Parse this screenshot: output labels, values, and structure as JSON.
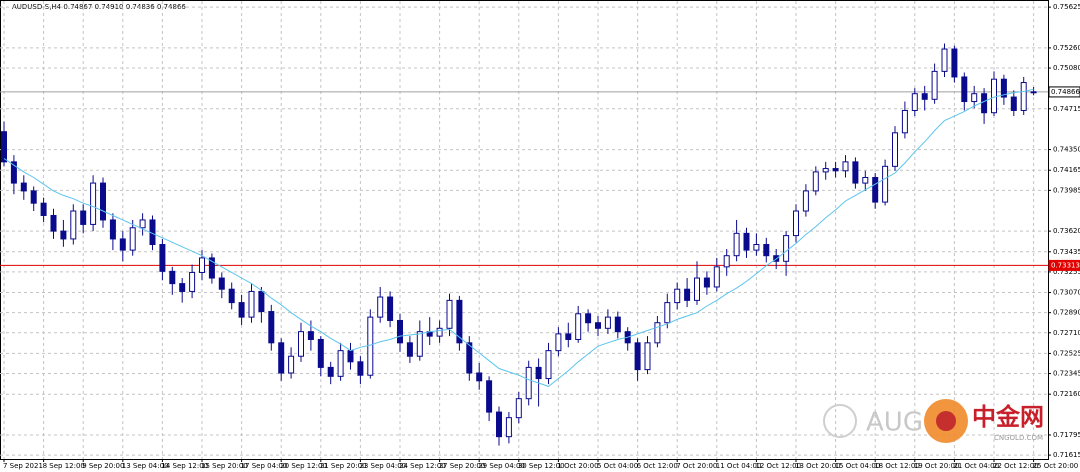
{
  "chart_data": {
    "type": "candlestick",
    "title": "AUDUSD-S,H4  0.74867 0.74910 0.74836 0.74866",
    "categories": [
      "7 Sep 2021",
      null,
      null,
      null,
      "8 Sep 12:00",
      null,
      null,
      null,
      "9 Sep 20:00",
      null,
      null,
      null,
      "13 Sep 04:00",
      null,
      null,
      null,
      "14 Sep 12:00",
      null,
      null,
      null,
      "15 Sep 20:00",
      null,
      null,
      null,
      "17 Sep 04:00",
      null,
      null,
      null,
      "20 Sep 12:00",
      null,
      null,
      null,
      "21 Sep 20:00",
      null,
      null,
      null,
      "23 Sep 04:00",
      null,
      null,
      null,
      "24 Sep 12:00",
      null,
      null,
      null,
      "27 Sep 20:00",
      null,
      null,
      null,
      "29 Sep 04:00",
      null,
      null,
      null,
      "30 Sep 12:00",
      null,
      null,
      null,
      "1 Oct 20:00",
      null,
      null,
      null,
      "5 Oct 04:00",
      null,
      null,
      null,
      "6 Oct 12:00",
      null,
      null,
      null,
      "7 Oct 20:00",
      null,
      null,
      null,
      "11 Oct 04:00",
      null,
      null,
      null,
      "12 Oct 12:00",
      null,
      null,
      null,
      "13 Oct 20:00",
      null,
      null,
      null,
      "15 Oct 04:00",
      null,
      null,
      null,
      "18 Oct 12:00",
      null,
      null,
      null,
      "19 Oct 20:00",
      null,
      null,
      null,
      "21 Oct 04:00",
      null,
      null,
      null,
      "22 Oct 12:00",
      null,
      null,
      null,
      "25 Oct 20:00"
    ],
    "open": [
      0.7451,
      0.7424,
      0.7405,
      0.7398,
      0.7387,
      0.7376,
      0.7362,
      0.7355,
      0.738,
      0.7368,
      0.7405,
      0.7372,
      0.7355,
      0.7345,
      0.7365,
      0.7372,
      0.735,
      0.7326,
      0.7315,
      0.7308,
      0.7325,
      0.7338,
      0.732,
      0.731,
      0.7298,
      0.7285,
      0.7308,
      0.729,
      0.7262,
      0.7235,
      0.725,
      0.7272,
      0.7265,
      0.724,
      0.7232,
      0.7255,
      0.7245,
      0.7233,
      0.7285,
      0.7303,
      0.7282,
      0.7262,
      0.725,
      0.7272,
      0.7268,
      0.7275,
      0.73,
      0.7262,
      0.7235,
      0.7228,
      0.72,
      0.7178,
      0.7195,
      0.7212,
      0.724,
      0.723,
      0.7255,
      0.727,
      0.7265,
      0.7288,
      0.728,
      0.7275,
      0.7285,
      0.7272,
      0.7262,
      0.7238,
      0.7262,
      0.728,
      0.7298,
      0.731,
      0.73,
      0.732,
      0.7312,
      0.733,
      0.734,
      0.736,
      0.7345,
      0.735,
      0.734,
      0.7335,
      0.7358,
      0.738,
      0.7398,
      0.7415,
      0.7418,
      0.7416,
      0.7424,
      0.7405,
      0.741,
      0.7388,
      0.742,
      0.745,
      0.747,
      0.7485,
      0.748,
      0.7505,
      0.7525,
      0.75,
      0.7478,
      0.7485,
      0.7468,
      0.7498,
      0.7482,
      0.747,
      0.74867
    ],
    "high": [
      0.746,
      0.743,
      0.7412,
      0.7402,
      0.7392,
      0.7382,
      0.7372,
      0.7386,
      0.7386,
      0.7412,
      0.741,
      0.7378,
      0.7362,
      0.7372,
      0.7378,
      0.7376,
      0.7355,
      0.733,
      0.732,
      0.7332,
      0.7345,
      0.7342,
      0.7325,
      0.7316,
      0.7305,
      0.7315,
      0.7312,
      0.7296,
      0.7266,
      0.7258,
      0.728,
      0.7282,
      0.7268,
      0.7245,
      0.7262,
      0.7262,
      0.725,
      0.7292,
      0.7312,
      0.7308,
      0.7288,
      0.7268,
      0.7282,
      0.7285,
      0.7282,
      0.7306,
      0.7304,
      0.7268,
      0.7244,
      0.7232,
      0.7205,
      0.72,
      0.7218,
      0.7246,
      0.7248,
      0.7262,
      0.7276,
      0.728,
      0.7295,
      0.7292,
      0.7286,
      0.7292,
      0.729,
      0.7276,
      0.7266,
      0.7268,
      0.7286,
      0.7306,
      0.7316,
      0.732,
      0.7335,
      0.7326,
      0.7338,
      0.7346,
      0.7372,
      0.7365,
      0.736,
      0.7356,
      0.7346,
      0.7362,
      0.7386,
      0.7404,
      0.742,
      0.7424,
      0.7424,
      0.743,
      0.7428,
      0.7416,
      0.7414,
      0.7426,
      0.7456,
      0.7478,
      0.749,
      0.7492,
      0.7512,
      0.753,
      0.7528,
      0.7504,
      0.7492,
      0.749,
      0.7505,
      0.7502,
      0.7488,
      0.75,
      0.7491
    ],
    "low": [
      0.742,
      0.7395,
      0.739,
      0.738,
      0.737,
      0.7355,
      0.7348,
      0.735,
      0.736,
      0.7362,
      0.7365,
      0.7345,
      0.7335,
      0.734,
      0.7358,
      0.7345,
      0.7318,
      0.7305,
      0.7298,
      0.7302,
      0.7318,
      0.7315,
      0.7302,
      0.7292,
      0.7278,
      0.728,
      0.728,
      0.7255,
      0.7228,
      0.723,
      0.7245,
      0.7255,
      0.7232,
      0.7225,
      0.7228,
      0.7238,
      0.7225,
      0.723,
      0.728,
      0.7276,
      0.7254,
      0.7244,
      0.7246,
      0.726,
      0.7262,
      0.7268,
      0.7255,
      0.7228,
      0.722,
      0.7192,
      0.717,
      0.7172,
      0.719,
      0.7206,
      0.7205,
      0.7225,
      0.725,
      0.7258,
      0.7262,
      0.7272,
      0.7268,
      0.727,
      0.7266,
      0.7255,
      0.7228,
      0.7234,
      0.7258,
      0.7275,
      0.7292,
      0.7294,
      0.7296,
      0.7305,
      0.7308,
      0.7322,
      0.7335,
      0.7338,
      0.734,
      0.7334,
      0.7328,
      0.7322,
      0.7352,
      0.7375,
      0.7394,
      0.7408,
      0.741,
      0.741,
      0.74,
      0.7398,
      0.7382,
      0.7385,
      0.7416,
      0.7445,
      0.7465,
      0.747,
      0.7476,
      0.75,
      0.7495,
      0.747,
      0.7472,
      0.7458,
      0.7465,
      0.7475,
      0.7465,
      0.7466,
      0.74836
    ],
    "close": [
      0.7424,
      0.7405,
      0.7398,
      0.7387,
      0.7376,
      0.7362,
      0.7355,
      0.738,
      0.7368,
      0.7405,
      0.7372,
      0.7355,
      0.7345,
      0.7365,
      0.7372,
      0.735,
      0.7326,
      0.7315,
      0.7308,
      0.7325,
      0.7338,
      0.732,
      0.731,
      0.7298,
      0.7285,
      0.7308,
      0.729,
      0.7262,
      0.7235,
      0.725,
      0.7272,
      0.7265,
      0.724,
      0.7232,
      0.7255,
      0.7245,
      0.7233,
      0.7285,
      0.7303,
      0.7282,
      0.7262,
      0.725,
      0.7272,
      0.7268,
      0.7275,
      0.73,
      0.7262,
      0.7235,
      0.7228,
      0.72,
      0.7178,
      0.7195,
      0.7212,
      0.724,
      0.723,
      0.7255,
      0.727,
      0.7265,
      0.7288,
      0.728,
      0.7275,
      0.7285,
      0.7272,
      0.7262,
      0.7238,
      0.7262,
      0.728,
      0.7298,
      0.731,
      0.73,
      0.732,
      0.7312,
      0.733,
      0.734,
      0.736,
      0.7345,
      0.735,
      0.734,
      0.7335,
      0.7358,
      0.738,
      0.7398,
      0.7415,
      0.7418,
      0.7416,
      0.7424,
      0.7405,
      0.741,
      0.7388,
      0.742,
      0.745,
      0.747,
      0.7485,
      0.748,
      0.7505,
      0.7525,
      0.75,
      0.7478,
      0.7485,
      0.7468,
      0.7498,
      0.7482,
      0.747,
      0.7495,
      0.74866
    ],
    "candle_color": "#0a0a8c",
    "ma": {
      "color": "#5bc4ef",
      "values": [
        0.7427,
        0.7421,
        0.7415,
        0.741,
        0.7404,
        0.7398,
        0.7394,
        0.7391,
        0.7387,
        0.7384,
        0.738,
        0.7376,
        0.7372,
        0.7368,
        0.7364,
        0.736,
        0.7356,
        0.7352,
        0.7348,
        0.7344,
        0.734,
        0.7335,
        0.733,
        0.7325,
        0.732,
        0.7315,
        0.7309,
        0.7302,
        0.7296,
        0.7289,
        0.7283,
        0.7277,
        0.7272,
        0.7266,
        0.7261,
        0.7255,
        0.7258,
        0.726,
        0.7263,
        0.7265,
        0.7268,
        0.7269,
        0.727,
        0.7272,
        0.7273,
        0.7274,
        0.7267,
        0.726,
        0.7253,
        0.7246,
        0.7239,
        0.7236,
        0.7233,
        0.7229,
        0.7226,
        0.7223,
        0.723,
        0.7237,
        0.7245,
        0.7252,
        0.7259,
        0.7262,
        0.7265,
        0.7267,
        0.727,
        0.7273,
        0.7276,
        0.7279,
        0.7283,
        0.7286,
        0.7289,
        0.7295,
        0.73,
        0.7306,
        0.7311,
        0.7317,
        0.7324,
        0.7331,
        0.7337,
        0.7344,
        0.7351,
        0.7359,
        0.7366,
        0.7374,
        0.7381,
        0.7389,
        0.7394,
        0.7399,
        0.7404,
        0.7409,
        0.7414,
        0.7423,
        0.7433,
        0.7442,
        0.7452,
        0.7461,
        0.7465,
        0.7469,
        0.7474,
        0.7478,
        0.7482,
        0.7484,
        0.7486,
        0.7487,
        0.7489
      ]
    },
    "hlines": [
      {
        "value": 0.73313,
        "color": "#e00000"
      },
      {
        "value": 0.74866,
        "color": "#a0a0a0"
      }
    ],
    "ylim": [
      0.7158,
      0.7568
    ],
    "yticks": [
      0.75625,
      {
        "value": 0.7526,
        "label": "0.75260"
      },
      {
        "value": 0.7508,
        "label": "0.75080"
      },
      0.74715,
      {
        "value": 0.7435,
        "label": "0.74350"
      },
      0.74165,
      0.73985,
      {
        "value": 0.7362,
        "label": "0.73620"
      },
      0.73435,
      0.73255,
      {
        "value": 0.7307,
        "label": "0.73070"
      },
      {
        "value": 0.7289,
        "label": "0.72890"
      },
      {
        "value": 0.7271,
        "label": "0.72710"
      },
      0.72525,
      0.72345,
      {
        "value": 0.7216,
        "label": "0.72160"
      },
      0.71795,
      0.71615
    ],
    "grid": true,
    "watermark": [
      "AUG",
      "中金网",
      "CNGOLD.COM"
    ]
  }
}
